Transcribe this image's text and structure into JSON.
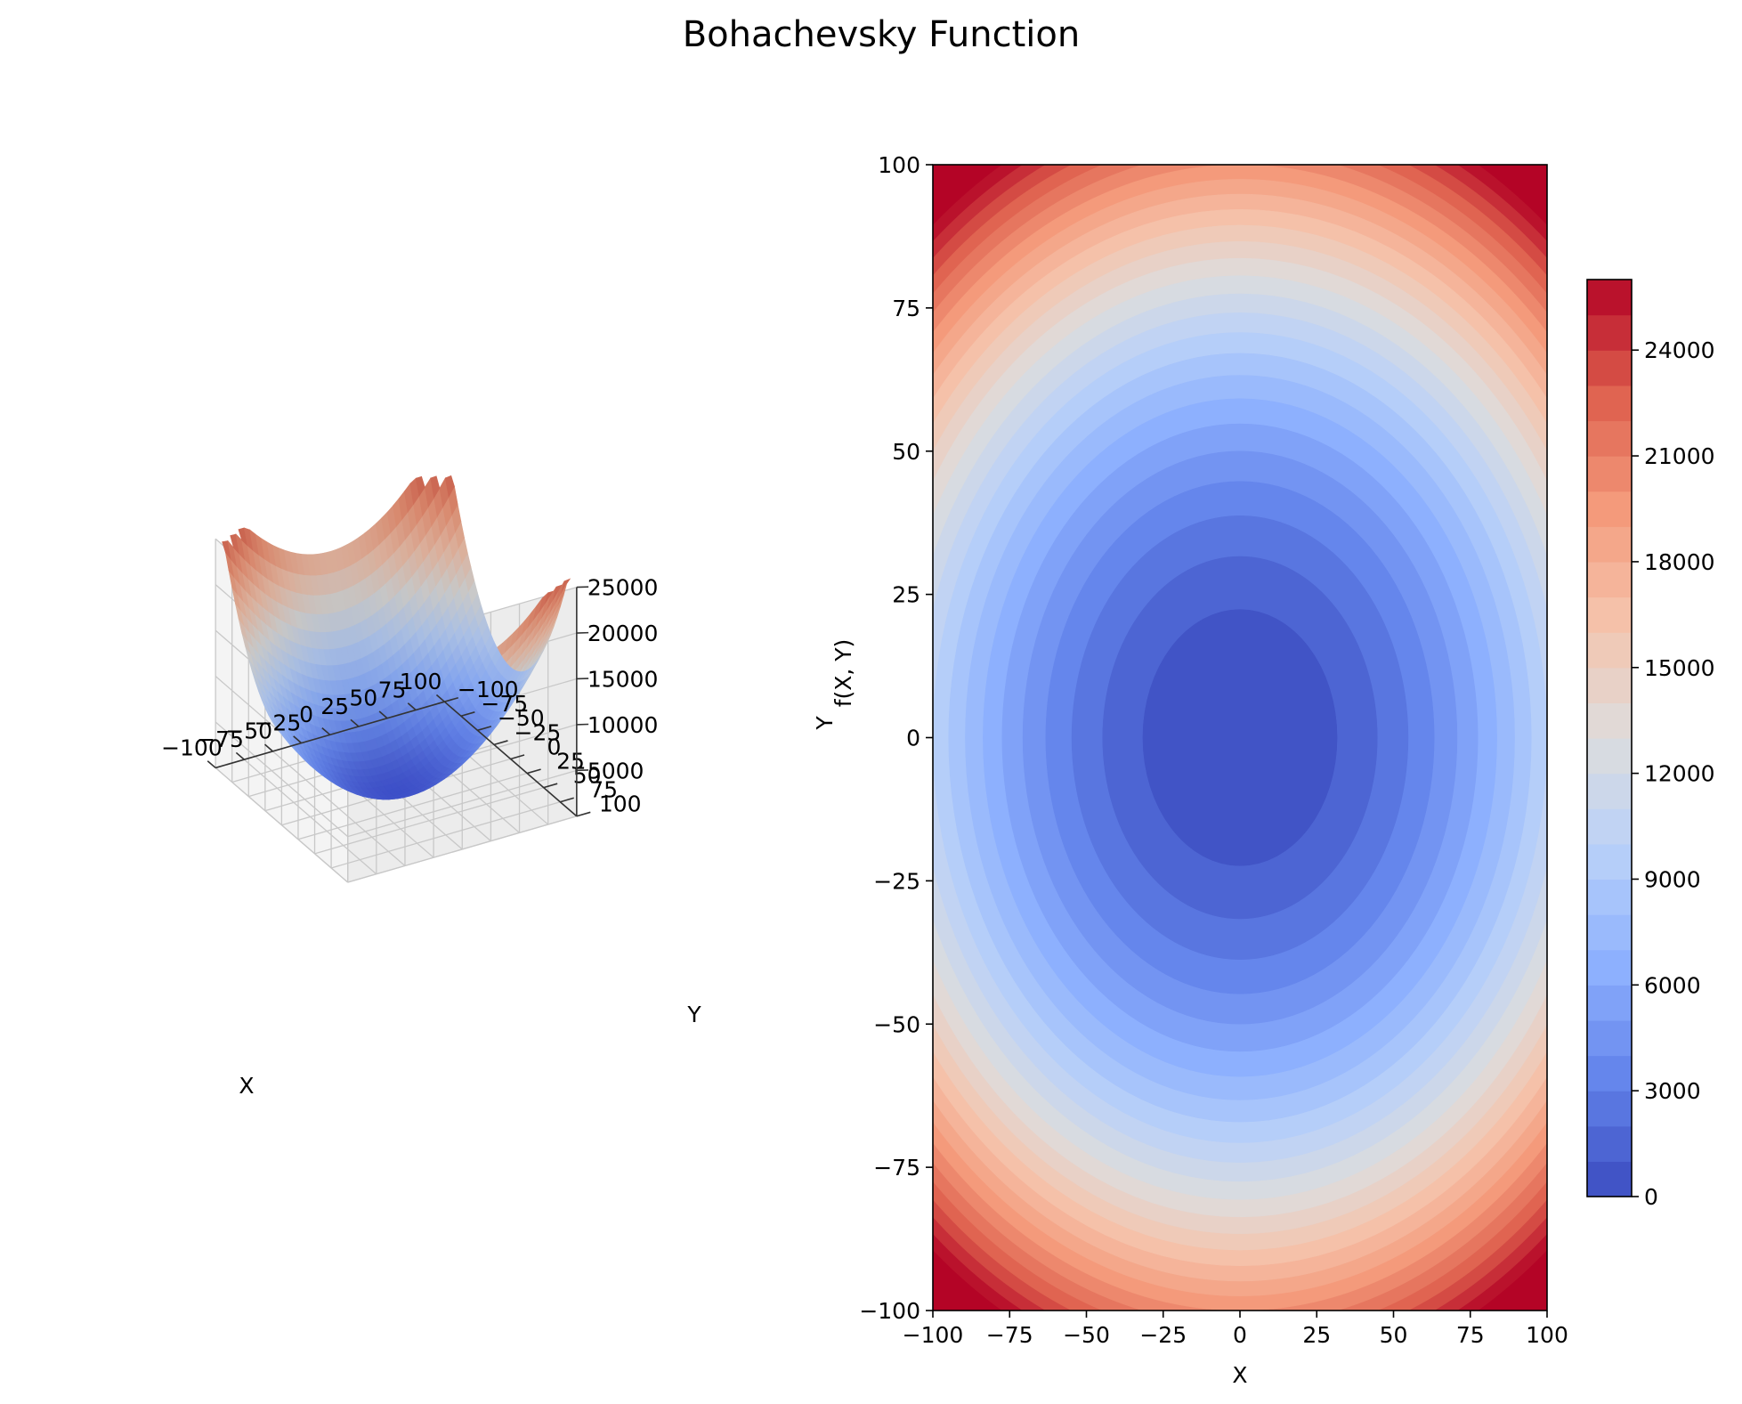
{
  "title": "Bohachevsky Function",
  "chart_data": [
    {
      "type": "surface3d",
      "function": "x^2 + 2*y^2 - 0.3*cos(3*pi*x) - 0.4*cos(4*pi*y) + 0.7",
      "x_range": [
        -100,
        100
      ],
      "y_range": [
        -100,
        100
      ],
      "z_range": [
        0,
        25000
      ],
      "xlabel": "X",
      "ylabel": "Y",
      "zlabel": "f(X, Y)",
      "colormap": "coolwarm",
      "x_ticks": [
        "−100",
        "−75",
        "−50",
        "−25",
        "0",
        "25",
        "50",
        "75",
        "100"
      ],
      "y_ticks": [
        "−100",
        "−75",
        "−50",
        "−25",
        "0",
        "25",
        "50",
        "75",
        "100"
      ],
      "z_ticks": [
        "5000",
        "10000",
        "15000",
        "20000",
        "25000"
      ],
      "extra_label": "Y",
      "grid": true
    },
    {
      "type": "contourf",
      "x_range": [
        -100,
        100
      ],
      "y_range": [
        -100,
        100
      ],
      "xlabel": "X",
      "ylabel": "",
      "x_ticks": [
        "−100",
        "−75",
        "−50",
        "−25",
        "0",
        "25",
        "50",
        "75",
        "100"
      ],
      "y_ticks": [
        "−100",
        "−75",
        "−50",
        "−25",
        "0",
        "25",
        "50",
        "75",
        "100"
      ],
      "levels": {
        "min": 0,
        "max": 26000,
        "step": 1000
      },
      "colorbar": {
        "range": [
          0,
          26000
        ],
        "ticks": [
          "0",
          "3000",
          "6000",
          "9000",
          "12000",
          "15000",
          "18000",
          "21000",
          "24000"
        ],
        "location": "right"
      },
      "colormap": "coolwarm"
    }
  ]
}
